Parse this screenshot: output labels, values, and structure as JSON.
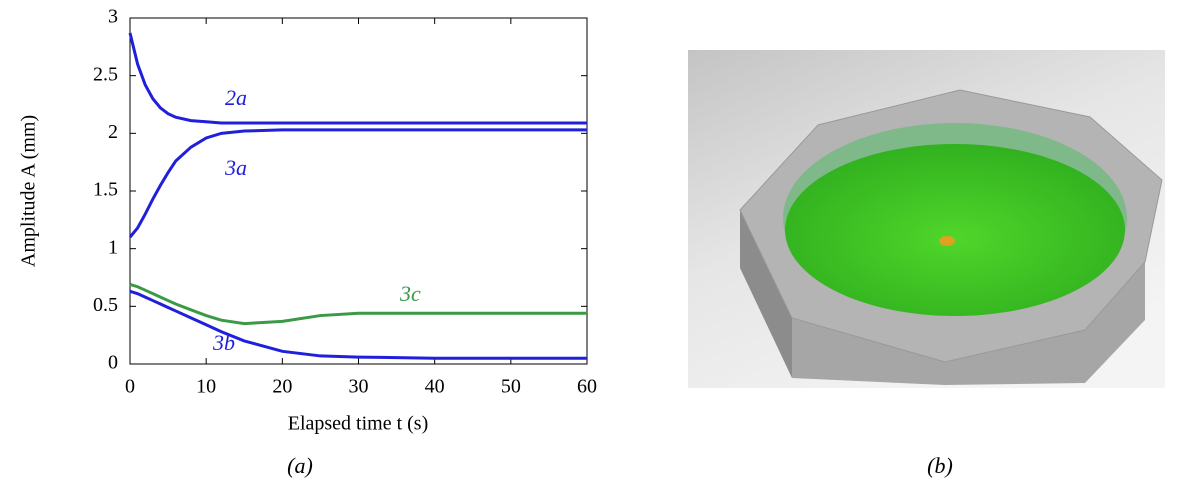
{
  "chart_data": {
    "type": "line",
    "xlabel": "Elapsed time t (s)",
    "ylabel": "Amplitude A (mm)",
    "x": [
      0,
      1,
      2,
      3,
      4,
      5,
      6,
      8,
      10,
      12,
      15,
      20,
      25,
      30,
      40,
      50,
      60
    ],
    "series": [
      {
        "name": "2a",
        "color": "#1f1fdc",
        "values": [
          2.87,
          2.6,
          2.42,
          2.3,
          2.22,
          2.17,
          2.14,
          2.11,
          2.1,
          2.09,
          2.09,
          2.09,
          2.09,
          2.09,
          2.09,
          2.09,
          2.09
        ]
      },
      {
        "name": "3a",
        "color": "#1f1fdc",
        "values": [
          1.1,
          1.18,
          1.3,
          1.43,
          1.55,
          1.66,
          1.76,
          1.88,
          1.96,
          2.0,
          2.02,
          2.03,
          2.03,
          2.03,
          2.03,
          2.03,
          2.03
        ]
      },
      {
        "name": "3b",
        "color": "#1f1fdc",
        "values": [
          0.63,
          0.61,
          0.58,
          0.55,
          0.52,
          0.49,
          0.46,
          0.4,
          0.34,
          0.28,
          0.2,
          0.11,
          0.07,
          0.06,
          0.05,
          0.05,
          0.05
        ]
      },
      {
        "name": "3c",
        "color": "#3a9a45",
        "values": [
          0.69,
          0.67,
          0.64,
          0.61,
          0.58,
          0.55,
          0.52,
          0.47,
          0.42,
          0.38,
          0.35,
          0.37,
          0.42,
          0.44,
          0.44,
          0.44,
          0.44
        ]
      }
    ],
    "xlim": [
      0,
      60
    ],
    "xticks": [
      0,
      10,
      20,
      30,
      40,
      50,
      60
    ],
    "ylim": [
      0,
      3
    ],
    "yticks": [
      0,
      0.5,
      1,
      1.5,
      2,
      2.5,
      3
    ]
  },
  "captions": [
    "(a)",
    "(b)"
  ]
}
